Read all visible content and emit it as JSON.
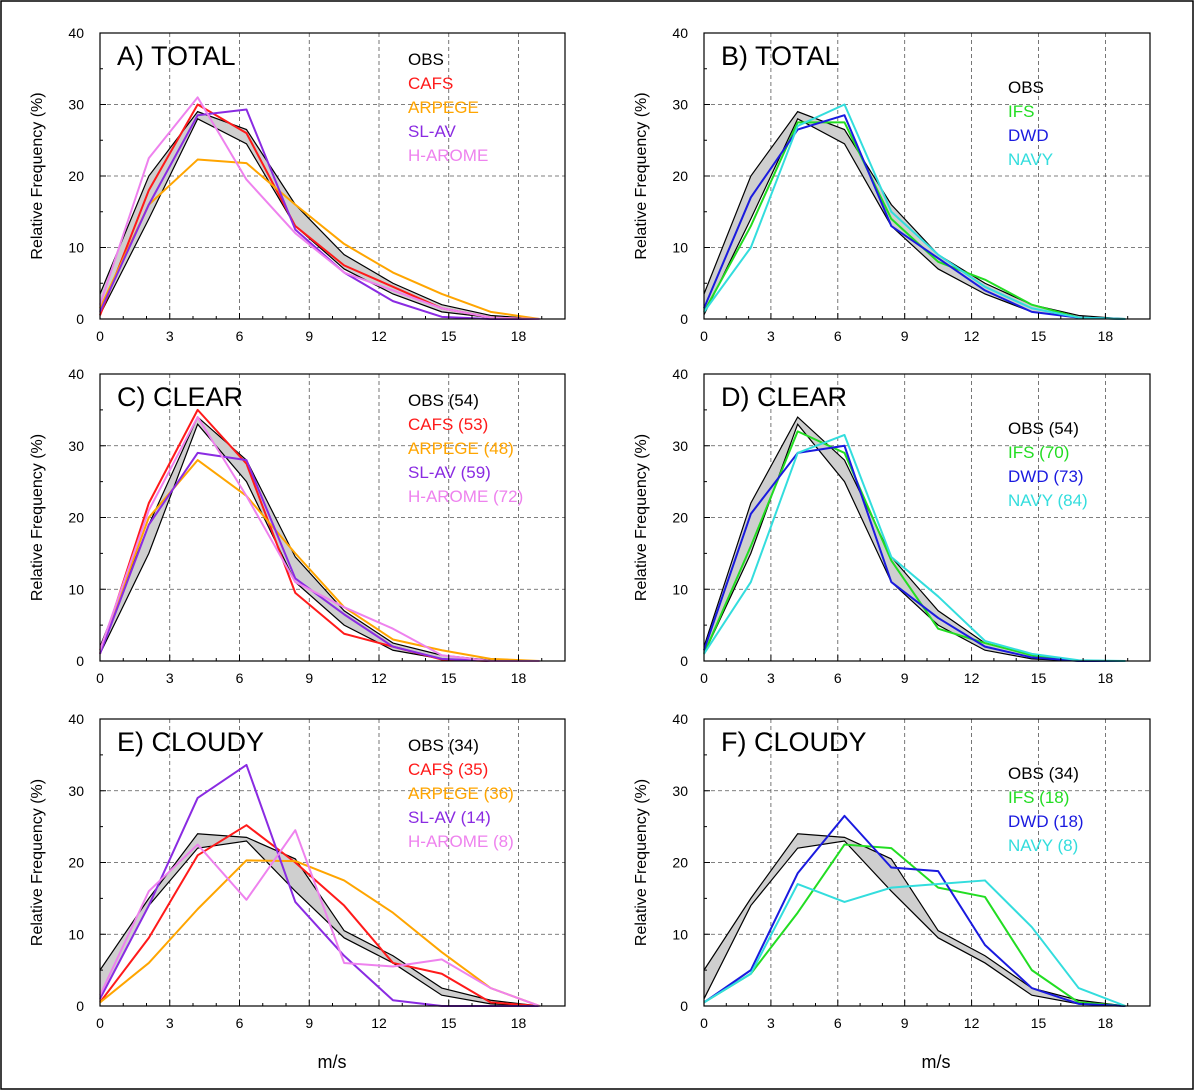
{
  "figure": {
    "xlabel_left": "m/s",
    "xlabel_right": "m/s"
  },
  "chart_data": [
    {
      "type": "line",
      "title": "A) TOTAL",
      "xlabel": "",
      "ylabel": "Relative Frequency (%)",
      "xlim": [
        0,
        20
      ],
      "ylim": [
        0,
        40
      ],
      "xticks": [
        "0",
        "3",
        "6",
        "9",
        "12",
        "15",
        "18"
      ],
      "yticks": [
        "0",
        "10",
        "20",
        "30",
        "40"
      ],
      "obs_band": {
        "label": "OBS",
        "color": "#000000",
        "x": [
          0,
          2.1,
          4.2,
          6.3,
          8.4,
          10.5,
          12.6,
          14.7,
          16.8,
          18.9
        ],
        "lower": [
          0.6,
          14.0,
          28.0,
          24.5,
          13.0,
          7.0,
          3.5,
          1.0,
          0.2,
          0
        ],
        "upper": [
          3.5,
          20.0,
          29.0,
          26.5,
          16.0,
          9.0,
          5.0,
          2.0,
          0.5,
          0
        ]
      },
      "series": [
        {
          "name": "CAFS",
          "color": "#ff1a1a",
          "x": [
            0,
            2.1,
            4.2,
            6.3,
            8.4,
            10.5,
            12.6,
            14.7,
            16.8,
            18.9
          ],
          "values": [
            0.5,
            18.0,
            30.0,
            26.0,
            13.0,
            7.5,
            4.5,
            1.5,
            0.2,
            0
          ]
        },
        {
          "name": "ARPEGE",
          "color": "#ffa500",
          "x": [
            0,
            2.1,
            4.2,
            6.3,
            8.4,
            10.5,
            12.6,
            14.7,
            16.8,
            18.9
          ],
          "values": [
            1.5,
            16.0,
            22.3,
            21.8,
            16.0,
            10.5,
            6.5,
            3.5,
            1.0,
            0
          ]
        },
        {
          "name": "SL-AV",
          "color": "#8a2be2",
          "x": [
            0,
            2.1,
            4.2,
            6.3,
            8.4,
            10.5,
            12.6,
            14.7,
            16.8,
            18.9
          ],
          "values": [
            1.0,
            16.0,
            28.5,
            29.3,
            12.5,
            6.5,
            2.5,
            0.3,
            0,
            0
          ]
        },
        {
          "name": "H-AROME",
          "color": "#ee82ee",
          "x": [
            0,
            2.1,
            4.2,
            6.3,
            8.4,
            10.5,
            12.6,
            14.7,
            16.8,
            18.9
          ],
          "values": [
            2.0,
            22.5,
            31.0,
            19.5,
            12.0,
            6.5,
            4.0,
            1.5,
            0.2,
            0
          ]
        }
      ]
    },
    {
      "type": "line",
      "title": "B) TOTAL",
      "xlabel": "",
      "ylabel": "Relative Frequency (%)",
      "xlim": [
        0,
        20
      ],
      "ylim": [
        0,
        40
      ],
      "xticks": [
        "0",
        "3",
        "6",
        "9",
        "12",
        "15",
        "18"
      ],
      "yticks": [
        "0",
        "10",
        "20",
        "30",
        "40"
      ],
      "obs_band": {
        "label": "OBS",
        "color": "#000000",
        "x": [
          0,
          2.1,
          4.2,
          6.3,
          8.4,
          10.5,
          12.6,
          14.7,
          16.8,
          18.9
        ],
        "lower": [
          0.6,
          14.0,
          28.0,
          24.5,
          13.0,
          7.0,
          3.5,
          1.0,
          0.2,
          0
        ],
        "upper": [
          3.5,
          20.0,
          29.0,
          26.5,
          16.0,
          9.0,
          5.0,
          2.0,
          0.5,
          0
        ]
      },
      "series": [
        {
          "name": "IFS",
          "color": "#22dd22",
          "x": [
            0,
            2.1,
            4.2,
            6.3,
            8.4,
            10.5,
            12.6,
            14.7,
            16.8,
            18.9
          ],
          "values": [
            1.0,
            13.0,
            27.5,
            27.5,
            14.0,
            8.0,
            5.5,
            2.0,
            0.2,
            0
          ]
        },
        {
          "name": "DWD",
          "color": "#1a1adf",
          "x": [
            0,
            2.1,
            4.2,
            6.3,
            8.4,
            10.5,
            12.6,
            14.7,
            16.8,
            18.9
          ],
          "values": [
            1.5,
            17.0,
            26.5,
            28.5,
            13.0,
            8.5,
            4.0,
            1.0,
            0.2,
            0
          ]
        },
        {
          "name": "NAVY",
          "color": "#33dddd",
          "x": [
            0,
            2.1,
            4.2,
            6.3,
            8.4,
            10.5,
            12.6,
            14.7,
            16.8,
            18.9
          ],
          "values": [
            1.0,
            10.0,
            27.0,
            30.0,
            15.0,
            9.0,
            4.5,
            1.5,
            0.2,
            0
          ]
        }
      ]
    },
    {
      "type": "line",
      "title": "C) CLEAR",
      "xlabel": "",
      "ylabel": "Relative Frequency (%)",
      "xlim": [
        0,
        20
      ],
      "ylim": [
        0,
        40
      ],
      "xticks": [
        "0",
        "3",
        "6",
        "9",
        "12",
        "15",
        "18"
      ],
      "yticks": [
        "0",
        "10",
        "20",
        "30",
        "40"
      ],
      "obs_band": {
        "label": "OBS (54)",
        "color": "#000000",
        "x": [
          0,
          2.1,
          4.2,
          6.3,
          8.4,
          10.5,
          12.6,
          14.7,
          16.8,
          18.9
        ],
        "lower": [
          1.0,
          15.0,
          33.0,
          25.0,
          11.0,
          5.0,
          1.5,
          0.3,
          0,
          0
        ],
        "upper": [
          2.0,
          19.0,
          34.0,
          28.0,
          14.5,
          7.0,
          2.5,
          0.8,
          0.1,
          0
        ]
      },
      "series": [
        {
          "name": "CAFS (53)",
          "color": "#ff1a1a",
          "x": [
            0,
            2.1,
            4.2,
            6.3,
            8.4,
            10.5,
            12.6,
            14.7,
            16.8,
            18.9
          ],
          "values": [
            1.0,
            22.0,
            35.0,
            27.5,
            9.5,
            3.8,
            2.0,
            0.2,
            0,
            0
          ]
        },
        {
          "name": "ARPEGE (48)",
          "color": "#ffa500",
          "x": [
            0,
            2.1,
            4.2,
            6.3,
            8.4,
            10.5,
            12.6,
            14.7,
            16.8,
            18.9
          ],
          "values": [
            1.5,
            20.0,
            28.0,
            23.0,
            15.0,
            7.5,
            3.0,
            1.5,
            0.3,
            0
          ]
        },
        {
          "name": "SL-AV (59)",
          "color": "#8a2be2",
          "x": [
            0,
            2.1,
            4.2,
            6.3,
            8.4,
            10.5,
            12.6,
            14.7,
            16.8,
            18.9
          ],
          "values": [
            1.0,
            19.0,
            29.0,
            28.0,
            11.5,
            6.5,
            2.0,
            0.3,
            0,
            0
          ]
        },
        {
          "name": "H-AROME (72)",
          "color": "#ee82ee",
          "x": [
            0,
            2.1,
            4.2,
            6.3,
            8.4,
            10.5,
            12.6,
            14.7,
            16.8,
            18.9
          ],
          "values": [
            1.5,
            21.0,
            34.0,
            23.0,
            11.0,
            7.5,
            4.5,
            0.8,
            0,
            0
          ]
        }
      ]
    },
    {
      "type": "line",
      "title": "D) CLEAR",
      "xlabel": "",
      "ylabel": "Relative Frequency (%)",
      "xlim": [
        0,
        20
      ],
      "ylim": [
        0,
        40
      ],
      "xticks": [
        "0",
        "3",
        "6",
        "9",
        "12",
        "15",
        "18"
      ],
      "yticks": [
        "0",
        "10",
        "20",
        "30",
        "40"
      ],
      "obs_band": {
        "label": "OBS (54)",
        "color": "#000000",
        "x": [
          0,
          2.1,
          4.2,
          6.3,
          8.4,
          10.5,
          12.6,
          14.7,
          16.8,
          18.9
        ],
        "lower": [
          1.0,
          15.0,
          33.0,
          25.0,
          11.0,
          5.0,
          1.5,
          0.3,
          0,
          0
        ],
        "upper": [
          2.0,
          22.0,
          34.0,
          28.0,
          14.5,
          7.0,
          2.5,
          0.8,
          0.1,
          0
        ]
      },
      "series": [
        {
          "name": "IFS (70)",
          "color": "#22dd22",
          "x": [
            0,
            2.1,
            4.2,
            6.3,
            8.4,
            10.5,
            12.6,
            14.7,
            16.8,
            18.9
          ],
          "values": [
            1.0,
            16.0,
            32.0,
            29.0,
            14.0,
            4.5,
            2.5,
            0.8,
            0,
            0
          ]
        },
        {
          "name": "DWD (73)",
          "color": "#1a1adf",
          "x": [
            0,
            2.1,
            4.2,
            6.3,
            8.4,
            10.5,
            12.6,
            14.7,
            16.8,
            18.9
          ],
          "values": [
            1.5,
            20.5,
            29.0,
            30.0,
            11.0,
            6.0,
            2.0,
            0.5,
            0,
            0
          ]
        },
        {
          "name": "NAVY (84)",
          "color": "#33dddd",
          "x": [
            0,
            2.1,
            4.2,
            6.3,
            8.4,
            10.5,
            12.6,
            14.7,
            16.8,
            18.9
          ],
          "values": [
            1.0,
            11.0,
            29.0,
            31.5,
            14.5,
            9.0,
            2.8,
            1.0,
            0.1,
            0
          ]
        }
      ]
    },
    {
      "type": "line",
      "title": "E) CLOUDY",
      "xlabel": "m/s",
      "ylabel": "Relative Frequency (%)",
      "xlim": [
        0,
        20
      ],
      "ylim": [
        0,
        40
      ],
      "xticks": [
        "0",
        "3",
        "6",
        "9",
        "12",
        "15",
        "18"
      ],
      "yticks": [
        "0",
        "10",
        "20",
        "30",
        "40"
      ],
      "obs_band": {
        "label": "OBS (34)",
        "color": "#000000",
        "x": [
          0,
          2.1,
          4.2,
          6.3,
          8.4,
          10.5,
          12.6,
          14.7,
          16.8,
          18.9
        ],
        "lower": [
          1.0,
          14.0,
          22.0,
          23.0,
          16.0,
          9.5,
          6.0,
          1.5,
          0.3,
          0
        ],
        "upper": [
          5.0,
          15.0,
          24.0,
          23.5,
          20.5,
          10.5,
          7.0,
          2.5,
          0.8,
          0
        ]
      },
      "series": [
        {
          "name": "CAFS (35)",
          "color": "#ff1a1a",
          "x": [
            0,
            2.1,
            4.2,
            6.3,
            8.4,
            10.5,
            12.6,
            14.7,
            16.8,
            18.9
          ],
          "values": [
            0.5,
            9.5,
            21.0,
            25.2,
            20.0,
            14.0,
            6.0,
            4.5,
            0.5,
            0
          ]
        },
        {
          "name": "ARPEGE (36)",
          "color": "#ffa500",
          "x": [
            0,
            2.1,
            4.2,
            6.3,
            8.4,
            10.5,
            12.6,
            14.7,
            16.8,
            18.9
          ],
          "values": [
            0.5,
            6.0,
            13.5,
            20.3,
            20.2,
            17.5,
            13.0,
            7.5,
            2.5,
            0
          ]
        },
        {
          "name": "SL-AV (14)",
          "color": "#8a2be2",
          "x": [
            0,
            2.1,
            4.2,
            6.3,
            8.4,
            10.5,
            12.6,
            14.7,
            16.8,
            18.9
          ],
          "values": [
            1.0,
            14.0,
            29.0,
            33.6,
            14.5,
            7.0,
            0.8,
            0,
            0,
            0
          ]
        },
        {
          "name": "H-AROME (8)",
          "color": "#ee82ee",
          "x": [
            0,
            2.1,
            4.2,
            6.3,
            8.4,
            10.5,
            12.6,
            14.7,
            16.8,
            18.9
          ],
          "values": [
            1.5,
            16.0,
            22.5,
            14.8,
            24.5,
            6.0,
            5.5,
            6.5,
            2.5,
            0
          ]
        }
      ]
    },
    {
      "type": "line",
      "title": "F) CLOUDY",
      "xlabel": "m/s",
      "ylabel": "Relative Frequency (%)",
      "xlim": [
        0,
        20
      ],
      "ylim": [
        0,
        40
      ],
      "xticks": [
        "0",
        "3",
        "6",
        "9",
        "12",
        "15",
        "18"
      ],
      "yticks": [
        "0",
        "10",
        "20",
        "30",
        "40"
      ],
      "obs_band": {
        "label": "OBS (34)",
        "color": "#000000",
        "x": [
          0,
          2.1,
          4.2,
          6.3,
          8.4,
          10.5,
          12.6,
          14.7,
          16.8,
          18.9
        ],
        "lower": [
          1.0,
          14.0,
          22.0,
          23.0,
          16.0,
          9.5,
          6.0,
          1.5,
          0.3,
          0
        ],
        "upper": [
          5.0,
          15.0,
          24.0,
          23.5,
          20.5,
          10.5,
          7.0,
          2.5,
          0.8,
          0
        ]
      },
      "series": [
        {
          "name": "IFS (18)",
          "color": "#22dd22",
          "x": [
            0,
            2.1,
            4.2,
            6.3,
            8.4,
            10.5,
            12.6,
            14.7,
            16.8,
            18.9
          ],
          "values": [
            0.5,
            4.5,
            13.0,
            22.5,
            22.0,
            16.5,
            15.2,
            5.0,
            0.5,
            0
          ]
        },
        {
          "name": "DWD (18)",
          "color": "#1a1adf",
          "x": [
            0,
            2.1,
            4.2,
            6.3,
            8.4,
            10.5,
            12.6,
            14.7,
            16.8,
            18.9
          ],
          "values": [
            0.5,
            5.0,
            18.5,
            26.5,
            19.3,
            18.8,
            8.5,
            2.5,
            0.3,
            0
          ]
        },
        {
          "name": "NAVY (8)",
          "color": "#33dddd",
          "x": [
            0,
            2.1,
            4.2,
            6.3,
            8.4,
            10.5,
            12.6,
            14.7,
            16.8,
            18.9
          ],
          "values": [
            0.5,
            4.5,
            17.0,
            14.5,
            16.5,
            17.0,
            17.5,
            11.0,
            2.5,
            0
          ]
        }
      ]
    }
  ]
}
